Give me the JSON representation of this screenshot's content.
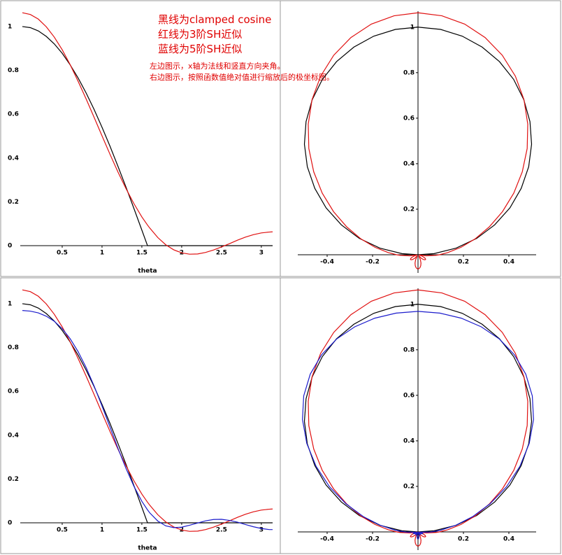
{
  "chart_data": [
    {
      "type": "line",
      "x_label": "theta",
      "annotations": [
        "黑线为clamped cosine",
        "红线为3阶SH近似",
        "蓝线为5阶SH近似",
        "左边图示，x轴为法线和竖直方向夹角。",
        "右边图示，按照函数值绝对值进行缩放后的极坐标图。"
      ],
      "x": [
        0,
        0.1,
        0.2,
        0.3,
        0.4,
        0.5,
        0.6,
        0.7,
        0.8,
        0.9,
        1,
        1.1,
        1.2,
        1.3,
        1.4,
        1.5,
        1.571,
        1.6,
        1.7,
        1.8,
        1.9,
        2,
        2.1,
        2.2,
        2.3,
        2.4,
        2.5,
        2.6,
        2.7,
        2.8,
        2.9,
        3,
        3.1,
        3.1416
      ],
      "series": [
        {
          "color": "#000000",
          "values": [
            1,
            0.995,
            0.98,
            0.955,
            0.921,
            0.878,
            0.825,
            0.765,
            0.697,
            0.622,
            0.54,
            0.454,
            0.362,
            0.268,
            0.17,
            0.071,
            0,
            0,
            0,
            0,
            0,
            0,
            0,
            0,
            0,
            0,
            0,
            0,
            0,
            0,
            0,
            0,
            0,
            0
          ]
        },
        {
          "color": "#e01010",
          "values": [
            1.063,
            1.055,
            1.034,
            0.999,
            0.952,
            0.894,
            0.826,
            0.75,
            0.67,
            0.586,
            0.501,
            0.417,
            0.336,
            0.261,
            0.192,
            0.131,
            0.094,
            0.08,
            0.037,
            0.004,
            -0.019,
            -0.033,
            -0.039,
            -0.038,
            -0.031,
            -0.02,
            -0.006,
            0.009,
            0.025,
            0.039,
            0.05,
            0.058,
            0.062,
            0.063
          ]
        }
      ],
      "xlim": [
        0,
        3.1416
      ],
      "ylim": [
        -0.04,
        1.07
      ],
      "xticks": [
        0.5,
        1,
        1.5,
        2,
        2.5,
        3
      ],
      "yticks": [
        0,
        0.2,
        0.4,
        0.6,
        0.8,
        1
      ]
    },
    {
      "type": "polar",
      "x": [
        0,
        0.1,
        0.2,
        0.3,
        0.4,
        0.5,
        0.6,
        0.7,
        0.8,
        0.9,
        1,
        1.1,
        1.2,
        1.3,
        1.4,
        1.5,
        1.571,
        1.6,
        1.7,
        1.8,
        1.9,
        2,
        2.1,
        2.2,
        2.3,
        2.4,
        2.5,
        2.6,
        2.7,
        2.8,
        2.9,
        3,
        3.1,
        3.1416
      ],
      "series": [
        {
          "color": "#000000",
          "values": [
            1,
            0.995,
            0.98,
            0.955,
            0.921,
            0.878,
            0.825,
            0.765,
            0.697,
            0.622,
            0.54,
            0.454,
            0.362,
            0.268,
            0.17,
            0.071,
            0,
            0,
            0,
            0,
            0,
            0,
            0,
            0,
            0,
            0,
            0,
            0,
            0,
            0,
            0,
            0,
            0,
            0
          ]
        },
        {
          "color": "#e01010",
          "values": [
            1.063,
            1.055,
            1.034,
            0.999,
            0.952,
            0.894,
            0.826,
            0.75,
            0.67,
            0.586,
            0.501,
            0.417,
            0.336,
            0.261,
            0.192,
            0.131,
            0.094,
            0.08,
            0.037,
            0.004,
            -0.019,
            -0.033,
            -0.039,
            -0.038,
            -0.031,
            -0.02,
            -0.006,
            0.009,
            0.025,
            0.039,
            0.05,
            0.058,
            0.062,
            0.063
          ]
        }
      ],
      "xlim": [
        -0.52,
        0.52
      ],
      "ylim": [
        -0.08,
        1.07
      ],
      "xticks": [
        -0.4,
        -0.2,
        0.2,
        0.4
      ],
      "yticks": [
        0.2,
        0.4,
        0.6,
        0.8,
        1
      ]
    },
    {
      "type": "line",
      "x_label": "theta",
      "x": [
        0,
        0.1,
        0.2,
        0.3,
        0.4,
        0.5,
        0.6,
        0.7,
        0.8,
        0.9,
        1,
        1.1,
        1.2,
        1.3,
        1.4,
        1.5,
        1.571,
        1.6,
        1.7,
        1.8,
        1.9,
        2,
        2.1,
        2.2,
        2.3,
        2.4,
        2.5,
        2.6,
        2.7,
        2.8,
        2.9,
        3,
        3.1,
        3.1416
      ],
      "series": [
        {
          "color": "#000000",
          "values": [
            1,
            0.995,
            0.98,
            0.955,
            0.921,
            0.878,
            0.825,
            0.765,
            0.697,
            0.622,
            0.54,
            0.454,
            0.362,
            0.268,
            0.17,
            0.071,
            0,
            0,
            0,
            0,
            0,
            0,
            0,
            0,
            0,
            0,
            0,
            0,
            0,
            0,
            0,
            0,
            0,
            0
          ]
        },
        {
          "color": "#e01010",
          "values": [
            1.063,
            1.055,
            1.034,
            0.999,
            0.952,
            0.894,
            0.826,
            0.75,
            0.67,
            0.586,
            0.501,
            0.417,
            0.336,
            0.261,
            0.192,
            0.131,
            0.094,
            0.08,
            0.037,
            0.004,
            -0.019,
            -0.033,
            -0.039,
            -0.038,
            -0.031,
            -0.02,
            -0.006,
            0.009,
            0.025,
            0.039,
            0.05,
            0.058,
            0.062,
            0.063
          ]
        },
        {
          "color": "#1c1ccc",
          "values": [
            0.969,
            0.966,
            0.958,
            0.943,
            0.92,
            0.886,
            0.84,
            0.781,
            0.709,
            0.625,
            0.533,
            0.437,
            0.34,
            0.249,
            0.167,
            0.098,
            0.059,
            0.045,
            0.008,
            -0.014,
            -0.022,
            -0.02,
            -0.011,
            -0.001,
            0.009,
            0.015,
            0.016,
            0.011,
            0.003,
            -0.008,
            -0.018,
            -0.026,
            -0.031,
            -0.031
          ]
        }
      ],
      "xlim": [
        0,
        3.1416
      ],
      "ylim": [
        -0.04,
        1.07
      ],
      "xticks": [
        0.5,
        1,
        1.5,
        2,
        2.5,
        3
      ],
      "yticks": [
        0,
        0.2,
        0.4,
        0.6,
        0.8,
        1
      ]
    },
    {
      "type": "polar",
      "x": [
        0,
        0.1,
        0.2,
        0.3,
        0.4,
        0.5,
        0.6,
        0.7,
        0.8,
        0.9,
        1,
        1.1,
        1.2,
        1.3,
        1.4,
        1.5,
        1.571,
        1.6,
        1.7,
        1.8,
        1.9,
        2,
        2.1,
        2.2,
        2.3,
        2.4,
        2.5,
        2.6,
        2.7,
        2.8,
        2.9,
        3,
        3.1,
        3.1416
      ],
      "series": [
        {
          "color": "#000000",
          "values": [
            1,
            0.995,
            0.98,
            0.955,
            0.921,
            0.878,
            0.825,
            0.765,
            0.697,
            0.622,
            0.54,
            0.454,
            0.362,
            0.268,
            0.17,
            0.071,
            0,
            0,
            0,
            0,
            0,
            0,
            0,
            0,
            0,
            0,
            0,
            0,
            0,
            0,
            0,
            0,
            0,
            0
          ]
        },
        {
          "color": "#e01010",
          "values": [
            1.063,
            1.055,
            1.034,
            0.999,
            0.952,
            0.894,
            0.826,
            0.75,
            0.67,
            0.586,
            0.501,
            0.417,
            0.336,
            0.261,
            0.192,
            0.131,
            0.094,
            0.08,
            0.037,
            0.004,
            -0.019,
            -0.033,
            -0.039,
            -0.038,
            -0.031,
            -0.02,
            -0.006,
            0.009,
            0.025,
            0.039,
            0.05,
            0.058,
            0.062,
            0.063
          ]
        },
        {
          "color": "#1c1ccc",
          "values": [
            0.969,
            0.966,
            0.958,
            0.943,
            0.92,
            0.886,
            0.84,
            0.781,
            0.709,
            0.625,
            0.533,
            0.437,
            0.34,
            0.249,
            0.167,
            0.098,
            0.059,
            0.045,
            0.008,
            -0.014,
            -0.022,
            -0.02,
            -0.011,
            -0.001,
            0.009,
            0.015,
            0.016,
            0.011,
            0.003,
            -0.008,
            -0.018,
            -0.026,
            -0.031,
            -0.031
          ]
        }
      ],
      "xlim": [
        -0.52,
        0.52
      ],
      "ylim": [
        -0.08,
        1.07
      ],
      "xticks": [
        -0.4,
        -0.2,
        0.2,
        0.4
      ],
      "yticks": [
        0.2,
        0.4,
        0.6,
        0.8,
        1
      ]
    }
  ]
}
